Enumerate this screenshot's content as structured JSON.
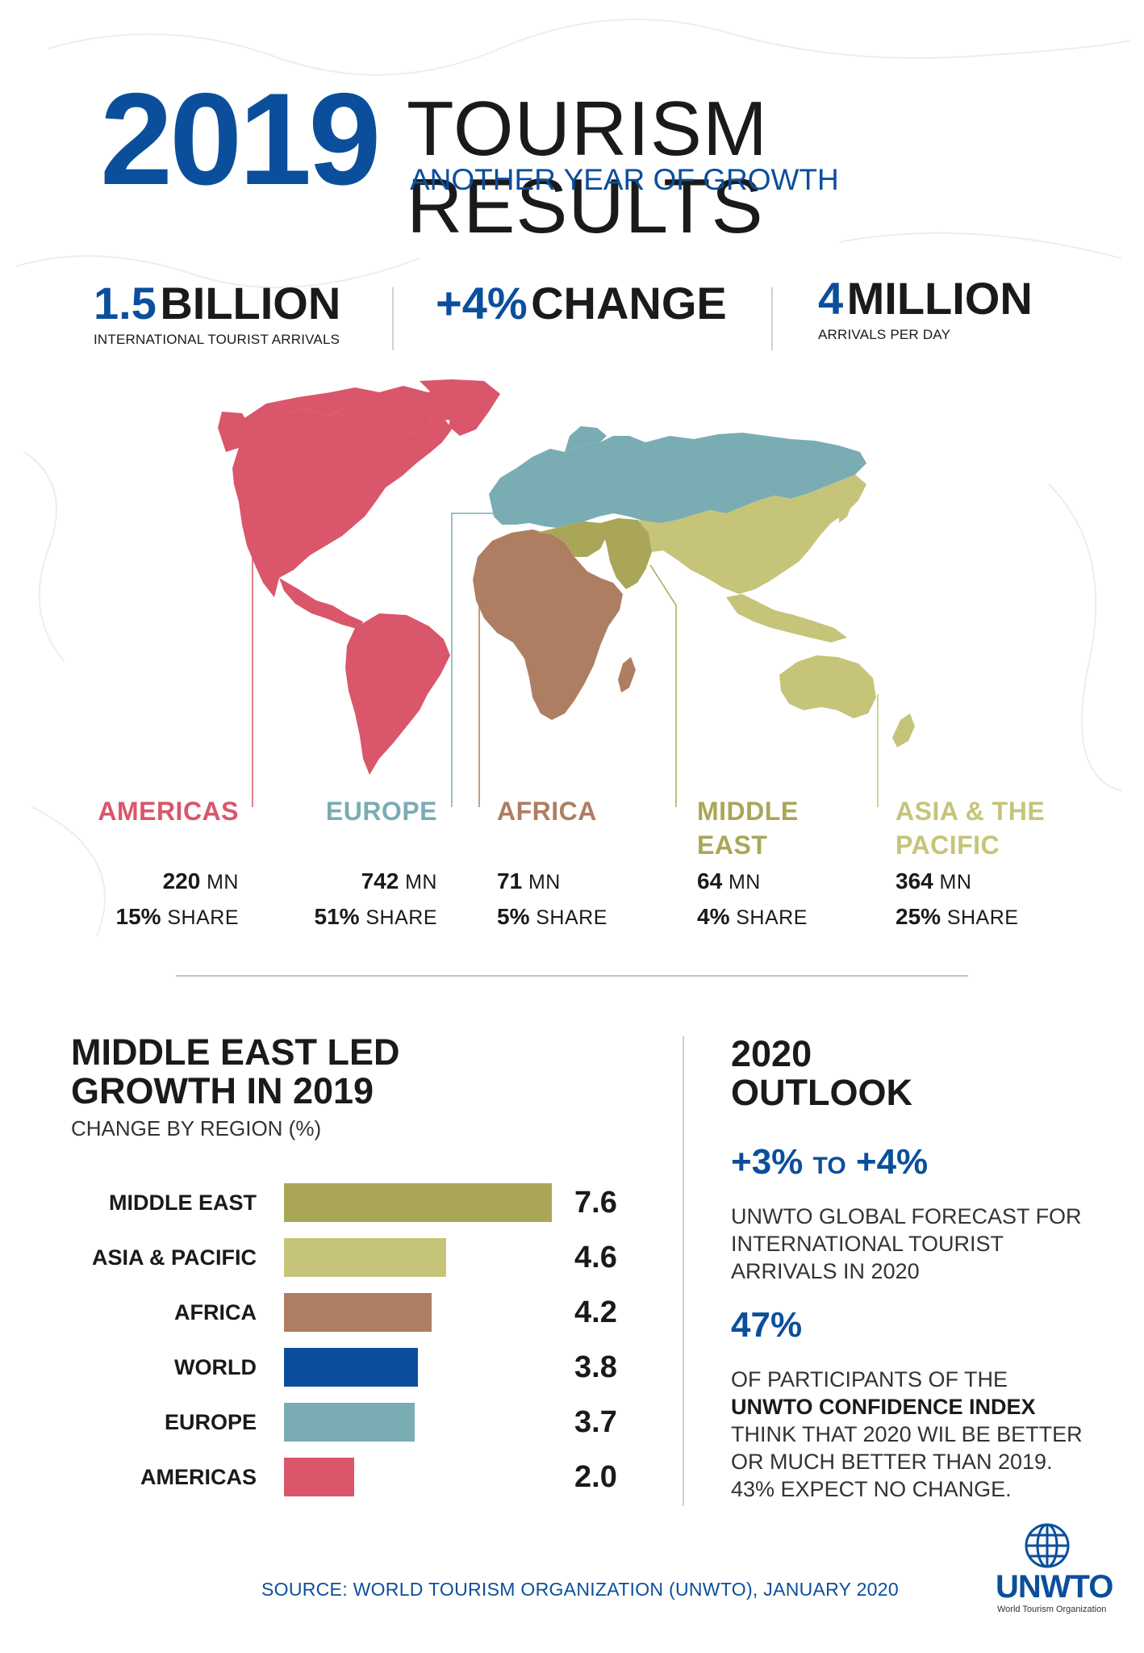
{
  "colors": {
    "blue": "#0b4f9c",
    "americas": "#d9566b",
    "europe": "#7aacb4",
    "africa": "#ae7e62",
    "middle_east": "#a9a757",
    "asia_pacific": "#c5c479",
    "world": "#0b4f9c"
  },
  "header": {
    "year": "2019",
    "title": "TOURISM RESULTS",
    "subtitle": "ANOTHER YEAR OF GROWTH"
  },
  "stats": [
    {
      "num": "1.5",
      "word": "BILLION",
      "label": "INTERNATIONAL TOURIST ARRIVALS"
    },
    {
      "num": "+4%",
      "word": "CHANGE",
      "label": ""
    },
    {
      "num": "4",
      "word": "MILLION",
      "label": "ARRIVALS PER DAY"
    }
  ],
  "regions": [
    {
      "name": "AMERICAS",
      "arrivals": "220",
      "unit": "MN",
      "share": "15%",
      "share_label": "SHARE"
    },
    {
      "name": "EUROPE",
      "arrivals": "742",
      "unit": "MN",
      "share": "51%",
      "share_label": "SHARE"
    },
    {
      "name": "AFRICA",
      "arrivals": "71",
      "unit": "MN",
      "share": "5%",
      "share_label": "SHARE"
    },
    {
      "name_line1": "MIDDLE",
      "name_line2": "EAST",
      "arrivals": "64",
      "unit": "MN",
      "share": "4%",
      "share_label": "SHARE"
    },
    {
      "name_line1": "ASIA & THE",
      "name_line2": "PACIFIC",
      "arrivals": "364",
      "unit": "MN",
      "share": "25%",
      "share_label": "SHARE"
    }
  ],
  "bar_section": {
    "title": "MIDDLE EAST LED GROWTH IN 2019",
    "subtitle": "CHANGE BY REGION (%)"
  },
  "chart_data": {
    "type": "bar",
    "orientation": "horizontal",
    "categories": [
      "MIDDLE EAST",
      "ASIA & PACIFIC",
      "AFRICA",
      "WORLD",
      "EUROPE",
      "AMERICAS"
    ],
    "values": [
      7.6,
      4.6,
      4.2,
      3.8,
      3.7,
      2.0
    ],
    "value_labels": [
      "7.6",
      "4.6",
      "4.2",
      "3.8",
      "3.7",
      "2.0"
    ],
    "colors": [
      "#a9a757",
      "#c5c479",
      "#ae7e62",
      "#0b4f9c",
      "#7aacb4",
      "#d9566b"
    ],
    "title": "MIDDLE EAST LED GROWTH IN 2019",
    "subtitle": "CHANGE BY REGION (%)",
    "xlim": [
      0,
      7.6
    ],
    "grid": false,
    "legend": "none"
  },
  "outlook": {
    "title_line1": "2020",
    "title_line2": "OUTLOOK",
    "range_from": "+3%",
    "range_to_word": "TO",
    "range_to": "+4%",
    "desc": "UNWTO GLOBAL FORECAST FOR INTERNATIONAL TOURIST ARRIVALS IN 2020",
    "pct": "47%",
    "note_pre": "OF PARTICIPANTS OF THE",
    "note_bold": "UNWTO CONFIDENCE INDEX",
    "note_post": "THINK THAT 2020 WIL BE BETTER OR MUCH BETTER THAN 2019. 43% EXPECT NO CHANGE."
  },
  "footer": {
    "source": "SOURCE: WORLD TOURISM ORGANIZATION (UNWTO), JANUARY 2020",
    "logo": "UNWTO",
    "logo_sub": "World Tourism Organization"
  }
}
